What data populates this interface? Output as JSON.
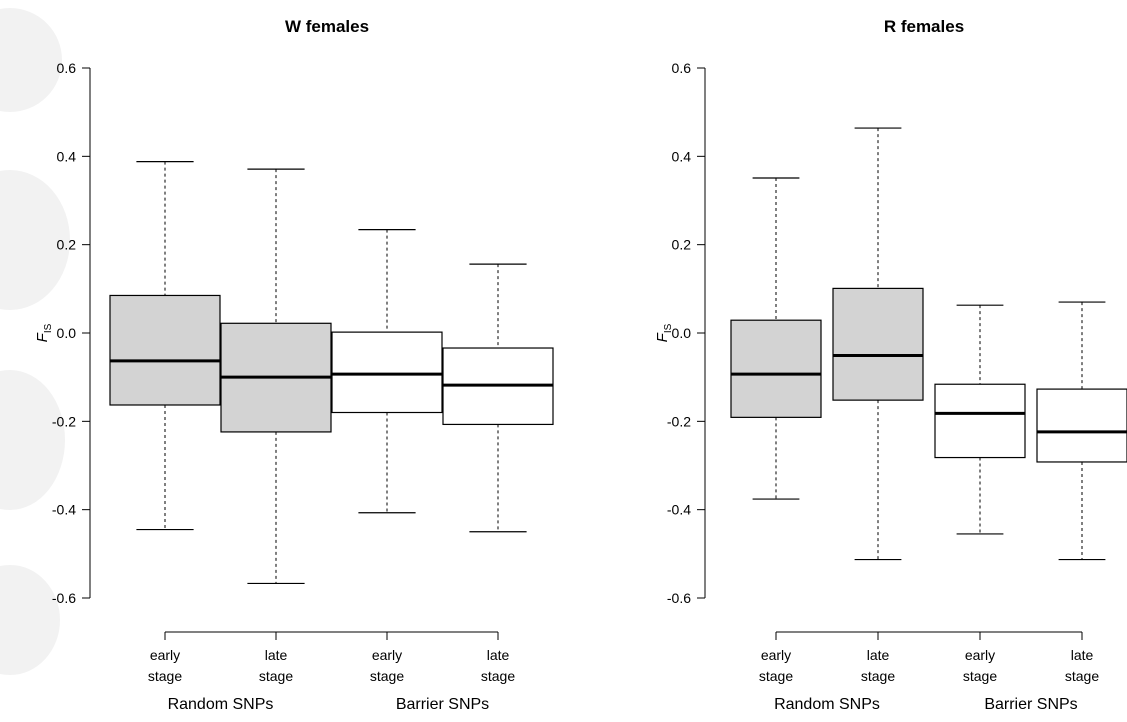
{
  "chart_data": [
    {
      "type": "box",
      "title": "W females",
      "ylabel_main": "F",
      "ylabel_sub": "IS",
      "ylim": [
        -0.6,
        0.6
      ],
      "yticks": [
        -0.6,
        -0.4,
        -0.2,
        0.0,
        0.2,
        0.4,
        0.6
      ],
      "ytick_labels": [
        "-0.6",
        "-0.4",
        "-0.2",
        "0.0",
        "0.2",
        "0.4",
        "0.6"
      ],
      "groups": [
        "Random SNPs",
        "Barrier SNPs"
      ],
      "boxes": [
        {
          "label_top": "early",
          "label_bottom": "stage",
          "group": "Random SNPs",
          "fill": "#d3d3d3",
          "whisker_low": -0.445,
          "q1": -0.163,
          "median": -0.063,
          "q3": 0.085,
          "whisker_high": 0.388
        },
        {
          "label_top": "late",
          "label_bottom": "stage",
          "group": "Random SNPs",
          "fill": "#d3d3d3",
          "whisker_low": -0.567,
          "q1": -0.224,
          "median": -0.1,
          "q3": 0.022,
          "whisker_high": 0.371
        },
        {
          "label_top": "early",
          "label_bottom": "stage",
          "group": "Barrier SNPs",
          "fill": "#ffffff",
          "whisker_low": -0.407,
          "q1": -0.18,
          "median": -0.093,
          "q3": 0.002,
          "whisker_high": 0.234
        },
        {
          "label_top": "late",
          "label_bottom": "stage",
          "group": "Barrier SNPs",
          "fill": "#ffffff",
          "whisker_low": -0.45,
          "q1": -0.207,
          "median": -0.118,
          "q3": -0.034,
          "whisker_high": 0.156
        }
      ]
    },
    {
      "type": "box",
      "title": "R females",
      "ylabel_main": "F",
      "ylabel_sub": "IS",
      "ylim": [
        -0.6,
        0.6
      ],
      "yticks": [
        -0.6,
        -0.4,
        -0.2,
        0.0,
        0.2,
        0.4,
        0.6
      ],
      "ytick_labels": [
        "-0.6",
        "-0.4",
        "-0.2",
        "0.0",
        "0.2",
        "0.4",
        "0.6"
      ],
      "groups": [
        "Random SNPs",
        "Barrier SNPs"
      ],
      "boxes": [
        {
          "label_top": "early",
          "label_bottom": "stage",
          "group": "Random SNPs",
          "fill": "#d3d3d3",
          "whisker_low": -0.376,
          "q1": -0.191,
          "median": -0.093,
          "q3": 0.029,
          "whisker_high": 0.351
        },
        {
          "label_top": "late",
          "label_bottom": "stage",
          "group": "Random SNPs",
          "fill": "#d3d3d3",
          "whisker_low": -0.513,
          "q1": -0.152,
          "median": -0.051,
          "q3": 0.101,
          "whisker_high": 0.464
        },
        {
          "label_top": "early",
          "label_bottom": "stage",
          "group": "Barrier SNPs",
          "fill": "#ffffff",
          "whisker_low": -0.455,
          "q1": -0.282,
          "median": -0.182,
          "q3": -0.116,
          "whisker_high": 0.063
        },
        {
          "label_top": "late",
          "label_bottom": "stage",
          "group": "Barrier SNPs",
          "fill": "#ffffff",
          "whisker_low": -0.513,
          "q1": -0.292,
          "median": -0.224,
          "q3": -0.127,
          "whisker_high": 0.07
        }
      ]
    }
  ]
}
